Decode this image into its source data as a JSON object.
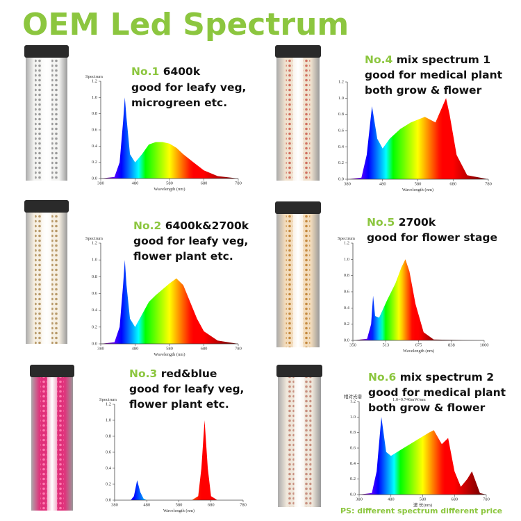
{
  "title": "OEM Led Spectrum",
  "panels": [
    {
      "number": "No.1",
      "name": "6400k",
      "lines": [
        "good for leafy veg,",
        "microgreen etc."
      ],
      "chart": {
        "type": "area",
        "y_label": "Spectrum",
        "x_label": "Wavelength (nm)",
        "xlim": [
          380,
          780
        ],
        "ylim": [
          0,
          1.2
        ],
        "xticks": [
          380,
          480,
          580,
          680,
          780
        ],
        "yticks": [
          {
            "value": 0,
            "label": "0.0"
          },
          0.2,
          0.4,
          0.6,
          0.8,
          {
            "value": 1,
            "label": "1.0"
          },
          1.2
        ],
        "x": [
          380,
          420,
          435,
          445,
          450,
          455,
          465,
          480,
          500,
          520,
          540,
          560,
          580,
          600,
          620,
          650,
          680,
          720,
          780
        ],
        "values": [
          0,
          0.02,
          0.2,
          0.7,
          1.0,
          0.75,
          0.3,
          0.2,
          0.3,
          0.42,
          0.45,
          0.45,
          0.43,
          0.38,
          0.3,
          0.2,
          0.1,
          0.03,
          0
        ]
      }
    },
    {
      "number": "No.2",
      "name": "6400k&2700k",
      "lines": [
        "good for leafy veg,",
        "flower plant etc."
      ],
      "chart": {
        "type": "area",
        "y_label": "Spectrum",
        "x_label": "Wavelength (nm)",
        "xlim": [
          380,
          780
        ],
        "ylim": [
          0,
          1.2
        ],
        "xticks": [
          380,
          480,
          580,
          680,
          780
        ],
        "yticks": [
          {
            "value": 0,
            "label": "0.0"
          },
          0.2,
          0.4,
          0.6,
          0.8,
          {
            "value": 1,
            "label": "1.0"
          },
          1.2
        ],
        "x": [
          380,
          420,
          435,
          445,
          450,
          455,
          465,
          480,
          500,
          520,
          540,
          560,
          580,
          600,
          620,
          640,
          660,
          680,
          720,
          780
        ],
        "values": [
          0,
          0.02,
          0.2,
          0.7,
          1.0,
          0.7,
          0.3,
          0.2,
          0.35,
          0.5,
          0.58,
          0.65,
          0.72,
          0.78,
          0.7,
          0.5,
          0.3,
          0.15,
          0.04,
          0
        ]
      }
    },
    {
      "number": "No.3",
      "name": "red&blue",
      "lines": [
        "good for leafy veg,",
        "flower plant etc."
      ],
      "chart": {
        "type": "area",
        "y_label": "Spectrum",
        "x_label": "Wavelength (nm)",
        "xlim": [
          380,
          780
        ],
        "ylim": [
          0,
          1.2
        ],
        "xticks": [
          380,
          480,
          580,
          680,
          780
        ],
        "yticks": [
          {
            "value": 0,
            "label": "0.0"
          },
          0.2,
          0.4,
          0.6,
          0.8,
          {
            "value": 1,
            "label": "1.0"
          },
          1.2
        ],
        "x": [
          380,
          430,
          440,
          450,
          460,
          470,
          480,
          620,
          640,
          650,
          660,
          670,
          680,
          700,
          780
        ],
        "values": [
          0,
          0,
          0.05,
          0.25,
          0.1,
          0.02,
          0,
          0,
          0.05,
          0.4,
          1.0,
          0.4,
          0.05,
          0,
          0
        ]
      }
    },
    {
      "number": "No.4",
      "name": "mix spectrum 1",
      "lines": [
        "good for medical plant",
        "both grow & flower"
      ],
      "chart": {
        "type": "area",
        "y_label": "",
        "x_label": "Wavelength (nm)",
        "xlim": [
          380,
          780
        ],
        "ylim": [
          0,
          1.2
        ],
        "xticks": [
          380,
          480,
          580,
          680,
          780
        ],
        "yticks": [
          {
            "value": 0,
            "label": "0.0"
          },
          0.2,
          0.4,
          0.6,
          0.8,
          {
            "value": 1,
            "label": "1.0"
          },
          1.2
        ],
        "x": [
          380,
          420,
          435,
          450,
          465,
          480,
          500,
          530,
          560,
          600,
          630,
          650,
          660,
          670,
          690,
          720,
          780
        ],
        "values": [
          0,
          0.02,
          0.3,
          0.9,
          0.5,
          0.38,
          0.5,
          0.62,
          0.7,
          0.77,
          0.7,
          0.9,
          1.0,
          0.8,
          0.3,
          0.05,
          0
        ]
      }
    },
    {
      "number": "No.5",
      "name": "2700k",
      "lines": [
        "good for flower stage"
      ],
      "chart": {
        "type": "area",
        "y_label": "Spectrum",
        "x_label": "Wavelength (nm)",
        "xlim": [
          350,
          1000
        ],
        "ylim": [
          0,
          1.2
        ],
        "xticks": [
          350,
          513,
          675,
          838,
          1000
        ],
        "yticks": [
          {
            "value": 0,
            "label": "0.0"
          },
          0.2,
          0.4,
          0.6,
          0.8,
          {
            "value": 1,
            "label": "1.0"
          },
          1.2
        ],
        "x": [
          350,
          420,
          440,
          450,
          460,
          480,
          520,
          560,
          590,
          610,
          630,
          660,
          700,
          750,
          1000
        ],
        "values": [
          0,
          0.02,
          0.2,
          0.55,
          0.3,
          0.28,
          0.5,
          0.7,
          0.9,
          1.0,
          0.85,
          0.45,
          0.1,
          0.01,
          0
        ]
      }
    },
    {
      "number": "No.6",
      "name": "mix spectrum 2",
      "lines": [
        "good for medical plant",
        "both grow & flower"
      ],
      "chart": {
        "type": "area",
        "y_label": "相对光谱",
        "x_label": "波 长(nm)",
        "note": "1.0=0.746mW/nm",
        "xlim": [
          380,
          780
        ],
        "ylim": [
          0,
          1.2
        ],
        "xticks": [
          380,
          480,
          580,
          680,
          780
        ],
        "yticks": [
          {
            "value": 0,
            "label": "0.0"
          },
          0.2,
          0.4,
          0.6,
          0.8,
          {
            "value": 1,
            "label": "1.0"
          },
          1.2
        ],
        "x": [
          380,
          420,
          435,
          450,
          465,
          480,
          520,
          560,
          600,
          615,
          640,
          660,
          680,
          700,
          720,
          735,
          760,
          780
        ],
        "values": [
          0,
          0.02,
          0.3,
          1.0,
          0.55,
          0.5,
          0.6,
          0.7,
          0.8,
          0.83,
          0.65,
          0.73,
          0.3,
          0.1,
          0.2,
          0.3,
          0.02,
          0
        ]
      }
    }
  ],
  "footnote": "PS: different spectrum different price"
}
